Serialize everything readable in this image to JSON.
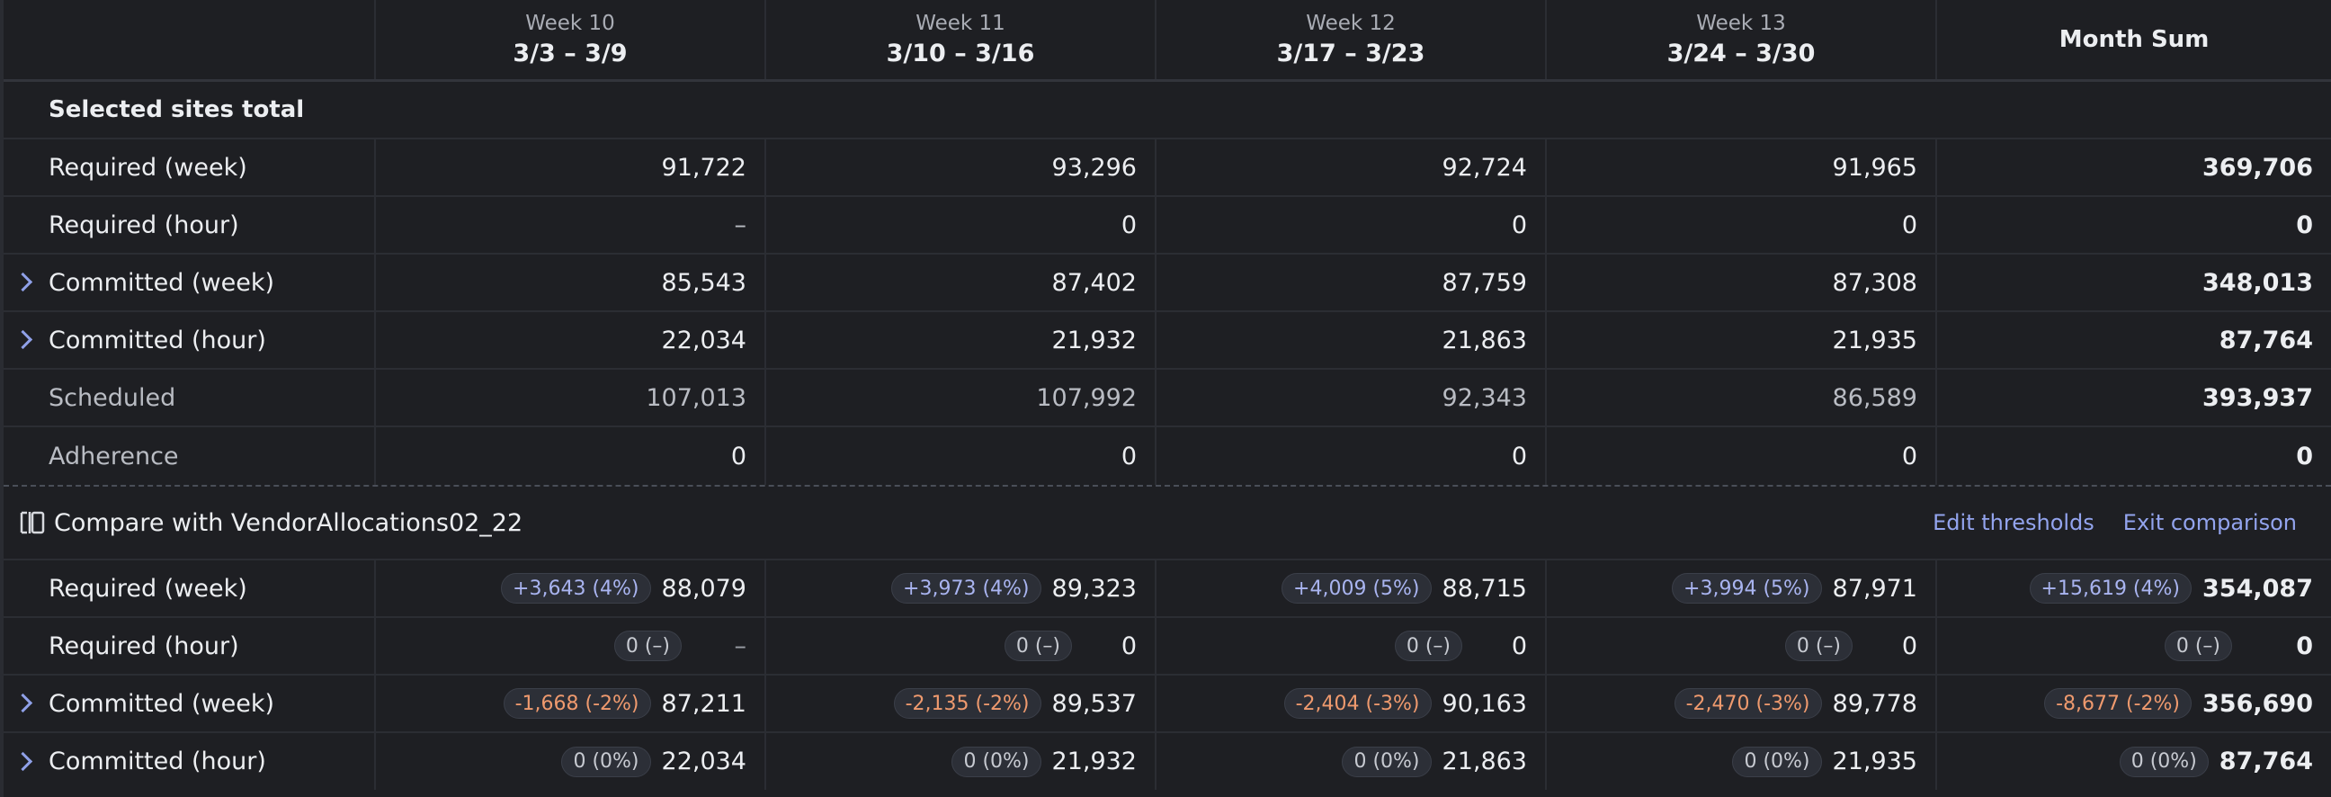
{
  "header": {
    "columns": [
      {
        "week": "Week 10",
        "range": "3/3 – 3/9"
      },
      {
        "week": "Week 11",
        "range": "3/10 – 3/16"
      },
      {
        "week": "Week 12",
        "range": "3/17 – 3/23"
      },
      {
        "week": "Week 13",
        "range": "3/24 – 3/30"
      }
    ],
    "sum_label": "Month Sum"
  },
  "section": {
    "title": "Selected sites total"
  },
  "rows": [
    {
      "label": "Required (week)",
      "values": [
        "91,722",
        "93,296",
        "92,724",
        "91,965"
      ],
      "sum": "369,706"
    },
    {
      "label": "Required (hour)",
      "values": [
        "–",
        "0",
        "0",
        "0"
      ],
      "sum": "0"
    },
    {
      "label": "Committed (week)",
      "values": [
        "85,543",
        "87,402",
        "87,759",
        "87,308"
      ],
      "sum": "348,013"
    },
    {
      "label": "Committed (hour)",
      "values": [
        "22,034",
        "21,932",
        "21,863",
        "21,935"
      ],
      "sum": "87,764"
    },
    {
      "label": "Scheduled",
      "values": [
        "107,013",
        "107,992",
        "92,343",
        "86,589"
      ],
      "sum": "393,937"
    },
    {
      "label": "Adherence",
      "values": [
        "0",
        "0",
        "0",
        "0"
      ],
      "sum": "0"
    }
  ],
  "compare": {
    "title": "Compare with VendorAllocations02_22",
    "edit_thresholds": "Edit thresholds",
    "exit_comparison": "Exit comparison",
    "rows": [
      {
        "label": "Required (week)",
        "cells": [
          {
            "delta": "+3,643 (4%)",
            "value": "88,079"
          },
          {
            "delta": "+3,973 (4%)",
            "value": "89,323"
          },
          {
            "delta": "+4,009 (5%)",
            "value": "88,715"
          },
          {
            "delta": "+3,994 (5%)",
            "value": "87,971"
          },
          {
            "delta": "+15,619 (4%)",
            "value": "354,087"
          }
        ]
      },
      {
        "label": "Required (hour)",
        "cells": [
          {
            "delta": "0 (–)",
            "value": "–"
          },
          {
            "delta": "0 (–)",
            "value": "0"
          },
          {
            "delta": "0 (–)",
            "value": "0"
          },
          {
            "delta": "0 (–)",
            "value": "0"
          },
          {
            "delta": "0 (–)",
            "value": "0"
          }
        ]
      },
      {
        "label": "Committed (week)",
        "cells": [
          {
            "delta": "-1,668 (-2%)",
            "value": "87,211"
          },
          {
            "delta": "-2,135 (-2%)",
            "value": "89,537"
          },
          {
            "delta": "-2,404 (-3%)",
            "value": "90,163"
          },
          {
            "delta": "-2,470 (-3%)",
            "value": "89,778"
          },
          {
            "delta": "-8,677 (-2%)",
            "value": "356,690"
          }
        ]
      },
      {
        "label": "Committed (hour)",
        "cells": [
          {
            "delta": "0 (0%)",
            "value": "22,034"
          },
          {
            "delta": "0 (0%)",
            "value": "21,932"
          },
          {
            "delta": "0 (0%)",
            "value": "21,863"
          },
          {
            "delta": "0 (0%)",
            "value": "21,935"
          },
          {
            "delta": "0 (0%)",
            "value": "87,764"
          }
        ]
      }
    ]
  },
  "colors": {
    "background": "#1e1f23",
    "positive_delta": "#a9b4f0",
    "negative_delta": "#ef9a6e",
    "link": "#93a4ee",
    "chevron": "#8fa0e8"
  },
  "icons": {
    "expand": "chevron-right-icon",
    "compare": "split-compare-icon"
  }
}
